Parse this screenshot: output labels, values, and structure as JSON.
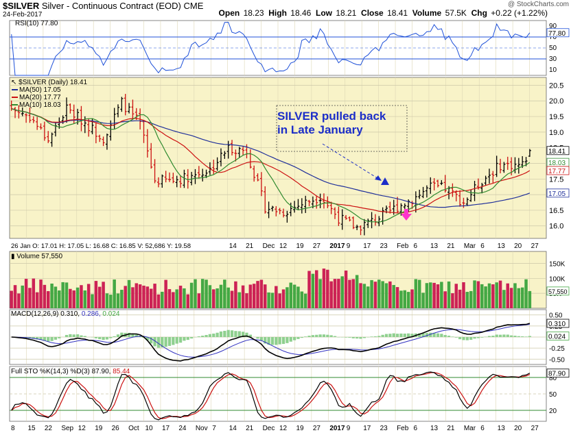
{
  "header": {
    "symbol": "$SILVER",
    "description": "Silver - Continuous Contract (EOD)",
    "exchange": "CME",
    "date": "24-Feb-2017",
    "watermark": "@ StockCharts.com",
    "open_label": "Open",
    "open": "18.23",
    "high_label": "High",
    "high": "18.46",
    "low_label": "Low",
    "low": "18.21",
    "close_label": "Close",
    "close": "18.41",
    "volume_label": "Volume",
    "volume": "57.5K",
    "chg_label": "Chg",
    "chg": "+0.22 (+1.22%)"
  },
  "rsi_panel": {
    "label": "RSI(10) 77.80",
    "ticks": [
      "90",
      "80",
      "70",
      "50",
      "30",
      "10"
    ],
    "current": "77.80",
    "tick_values": [
      90,
      80,
      70,
      50,
      30,
      10
    ],
    "range": [
      0,
      100
    ],
    "overbought": 70,
    "oversold": 30,
    "color": "#1c4fd8"
  },
  "price_panel": {
    "legend": {
      "symbol": "$SILVER (Daily) 18.41",
      "ma50": "MA(50) 17.05",
      "ma20": "MA(20) 17.77",
      "ma10": "MA(10) 18.03"
    },
    "colors": {
      "ma50": "#1f2f9a",
      "ma20": "#cc1111",
      "ma10": "#2f8a2f",
      "up": "#000000",
      "down": "#cc1111",
      "background": "#f8f3c8"
    },
    "y_ticks": [
      "20.5",
      "20.0",
      "19.5",
      "19.0",
      "18.5",
      "18.0",
      "17.5",
      "17.0",
      "16.5",
      "16.0"
    ],
    "y_tick_values": [
      20.5,
      20.0,
      19.5,
      19.0,
      18.5,
      18.0,
      17.5,
      17.0,
      16.5,
      16.0
    ],
    "ylim": [
      15.6,
      20.75
    ],
    "badges": [
      {
        "text": "18.41",
        "value": 18.41,
        "color": "#000000"
      },
      {
        "text": "18.03",
        "value": 18.03,
        "color": "#2f8a2f"
      },
      {
        "text": "17.77",
        "value": 17.77,
        "color": "#cc1111"
      },
      {
        "text": "17.05",
        "value": 17.05,
        "color": "#1f2f9a"
      }
    ],
    "annotation": {
      "line1": "SILVER pulled back",
      "line2": "in Late January",
      "color": "#1c2ec8"
    },
    "x_labels": [
      "14",
      "21",
      "Dec",
      "12",
      "19",
      "27",
      "2017",
      "9",
      "17",
      "23",
      "Feb",
      "6",
      "13",
      "21",
      "Mar",
      "6",
      "13",
      "20",
      "27"
    ],
    "info_bar": "26 Jan O: 17.01    H: 17.05    L: 16.68    C: 16.85    V: 52,686    Y: 19.58"
  },
  "volume_panel": {
    "label": "Volume 57,550",
    "ticks": [
      "150K",
      "100K",
      "50K"
    ],
    "tick_values": [
      150000,
      100000,
      50000
    ],
    "current": "57,550",
    "colors": {
      "up": "#44a844",
      "down": "#cc2255",
      "background": "#f8f3c8"
    }
  },
  "macd_panel": {
    "label": "MACD(12,26,9) 0.310,",
    "signal_value": "0.286",
    "hist_value": "0.024",
    "ticks": [
      "0.50",
      "0.25",
      "0.00",
      "-0.25",
      "-0.50"
    ],
    "tick_values": [
      0.5,
      0.25,
      0,
      -0.25,
      -0.5
    ],
    "badges": [
      "0.310",
      "0.024"
    ],
    "colors": {
      "macd": "#000000",
      "signal": "#3030c0",
      "hist": "#8fd08f"
    }
  },
  "sto_panel": {
    "label": "Full STO %K(14,3) %D(3) 87.90,",
    "d_value": "85.44",
    "ticks": [
      "80",
      "50",
      "20"
    ],
    "tick_values": [
      80,
      50,
      20
    ],
    "badge": "87.90",
    "colors": {
      "k": "#000000",
      "d": "#cc1111"
    }
  },
  "x_axis": {
    "labels": [
      "8",
      "15",
      "22",
      "Sep",
      "12",
      "19",
      "26",
      "Oct",
      "10",
      "17",
      "24",
      "Nov",
      "7",
      "14",
      "21",
      "Dec",
      "12",
      "19",
      "27",
      "2017",
      "9",
      "17",
      "23",
      "Feb",
      "6",
      "13",
      "21",
      "Mar",
      "6",
      "13",
      "20",
      "27"
    ]
  },
  "chart_data": {
    "type": "candlestick",
    "title": "$SILVER Silver - Continuous Contract (EOD) CME",
    "interval": "Daily",
    "date_range": [
      "2016-08-08",
      "2017-02-24"
    ],
    "ylim": [
      15.6,
      20.75
    ],
    "last": {
      "date": "2017-02-24",
      "open": 18.23,
      "high": 18.46,
      "low": 18.21,
      "close": 18.41,
      "volume": 57550
    },
    "moving_averages": [
      {
        "name": "MA(50)",
        "value": 17.05
      },
      {
        "name": "MA(20)",
        "value": 17.77
      },
      {
        "name": "MA(10)",
        "value": 18.03
      }
    ],
    "close_series": {
      "dates": [
        "2016-08-08",
        "2016-08-15",
        "2016-08-22",
        "2016-08-29",
        "2016-09-06",
        "2016-09-12",
        "2016-09-19",
        "2016-09-26",
        "2016-10-03",
        "2016-10-10",
        "2016-10-17",
        "2016-10-24",
        "2016-10-31",
        "2016-11-07",
        "2016-11-14",
        "2016-11-21",
        "2016-11-28",
        "2016-12-05",
        "2016-12-12",
        "2016-12-19",
        "2016-12-27",
        "2017-01-03",
        "2017-01-09",
        "2017-01-17",
        "2017-01-23",
        "2017-01-30",
        "2017-02-06",
        "2017-02-13",
        "2017-02-21",
        "2017-02-24"
      ],
      "close": [
        19.75,
        19.5,
        18.75,
        19.75,
        19.3,
        18.8,
        19.95,
        19.25,
        17.45,
        17.45,
        17.6,
        17.8,
        18.5,
        18.4,
        16.6,
        16.45,
        16.7,
        16.95,
        16.25,
        15.95,
        16.2,
        16.55,
        16.85,
        17.25,
        17.2,
        16.75,
        17.45,
        17.95,
        17.95,
        18.41
      ]
    },
    "rsi_current": 77.8,
    "volume_current": 57550,
    "macd": {
      "macd": 0.31,
      "signal": 0.286,
      "histogram": 0.024
    },
    "stochastic": {
      "k": 87.9,
      "d": 85.44
    }
  }
}
